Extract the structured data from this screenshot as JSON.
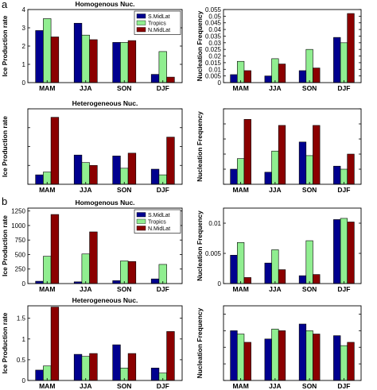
{
  "panel_labels": [
    "a",
    "b"
  ],
  "colors": {
    "S.MidLat": "#00008f",
    "Tropics": "#90ee90",
    "N.MidLat": "#8b0000"
  },
  "chart_data": [
    {
      "type": "bar",
      "panel": "a",
      "title": "Homogenous Nuc.",
      "ylabel": "Ice Production rate",
      "categories": [
        "MAM",
        "JJA",
        "SON",
        "DJF"
      ],
      "ylim": [
        0,
        4
      ],
      "yticks": [
        0,
        1,
        2,
        3,
        4
      ],
      "yticklabels": [
        "0",
        "1",
        "2",
        "3",
        "4"
      ],
      "legend": {
        "position": "top-right",
        "entries": [
          "S.MidLat",
          "Tropics",
          "N.MidLat"
        ]
      },
      "series": [
        {
          "name": "S.MidLat",
          "values": [
            2.85,
            3.25,
            2.2,
            0.45
          ]
        },
        {
          "name": "Tropics",
          "values": [
            3.5,
            2.6,
            2.2,
            1.7
          ]
        },
        {
          "name": "N.MidLat",
          "values": [
            2.5,
            2.35,
            2.3,
            0.3
          ]
        }
      ]
    },
    {
      "type": "bar",
      "panel": "a",
      "title": "",
      "ylabel": "Nucleation Frequency",
      "categories": [
        "MAM",
        "JJA",
        "SON",
        "DJF"
      ],
      "ylim": [
        0,
        0.055
      ],
      "yticks": [
        0,
        0.005,
        0.01,
        0.015,
        0.02,
        0.025,
        0.03,
        0.035,
        0.04,
        0.045,
        0.05,
        0.055
      ],
      "yticklabels": [
        "0",
        "0.005",
        "0.01",
        "0.015",
        "0.02",
        "0.025",
        "0.03",
        "0.035",
        "0.04",
        "0.045",
        "0.05",
        "0.055"
      ],
      "series": [
        {
          "name": "S.MidLat",
          "values": [
            0.006,
            0.005,
            0.009,
            0.034
          ]
        },
        {
          "name": "Tropics",
          "values": [
            0.016,
            0.018,
            0.025,
            0.03
          ]
        },
        {
          "name": "N.MidLat",
          "values": [
            0.009,
            0.014,
            0.011,
            0.052
          ]
        }
      ]
    },
    {
      "type": "bar",
      "panel": "a",
      "title": "Heterogeneous Nuc.",
      "ylabel": "Ice Production rate",
      "categories": [
        "MAM",
        "JJA",
        "SON",
        "DJF"
      ],
      "ylim": [
        0,
        0.8
      ],
      "yticks": [
        0,
        0.2,
        0.4,
        0.6,
        0.8
      ],
      "yticklabels": [
        "",
        "",
        "",
        "",
        ""
      ],
      "series": [
        {
          "name": "S.MidLat",
          "values": [
            0.1,
            0.31,
            0.3,
            0.16
          ]
        },
        {
          "name": "Tropics",
          "values": [
            0.13,
            0.23,
            0.17,
            0.1
          ]
        },
        {
          "name": "N.MidLat",
          "values": [
            0.71,
            0.2,
            0.33,
            0.5
          ]
        }
      ]
    },
    {
      "type": "bar",
      "panel": "a",
      "title": "",
      "ylabel": "Nucleation Frequency",
      "categories": [
        "MAM",
        "JJA",
        "SON",
        "DJF"
      ],
      "ylim": [
        0,
        0.5
      ],
      "yticks": [
        0,
        0.1,
        0.2,
        0.3,
        0.4,
        0.5
      ],
      "yticklabels": [
        "",
        "",
        "",
        "",
        "",
        ""
      ],
      "series": [
        {
          "name": "S.MidLat",
          "values": [
            0.1,
            0.08,
            0.28,
            0.12
          ]
        },
        {
          "name": "Tropics",
          "values": [
            0.17,
            0.22,
            0.19,
            0.1
          ]
        },
        {
          "name": "N.MidLat",
          "values": [
            0.43,
            0.39,
            0.39,
            0.2
          ]
        }
      ]
    },
    {
      "type": "bar",
      "panel": "b",
      "title": "Homogenous Nuc.",
      "ylabel": "Ice Production rate",
      "categories": [
        "MAM",
        "JJA",
        "SON",
        "DJF"
      ],
      "ylim": [
        0,
        1300
      ],
      "yticks": [
        0,
        250,
        500,
        750,
        1000,
        1250
      ],
      "yticklabels": [
        "0",
        "250",
        "500",
        "750",
        "1000",
        "1250"
      ],
      "legend": {
        "position": "top-right",
        "entries": [
          "S.MidLat",
          "Tropics",
          "N.MidLat"
        ]
      },
      "series": [
        {
          "name": "S.MidLat",
          "values": [
            40,
            30,
            50,
            80
          ]
        },
        {
          "name": "Tropics",
          "values": [
            470,
            510,
            390,
            330
          ]
        },
        {
          "name": "N.MidLat",
          "values": [
            1190,
            890,
            380,
            0
          ]
        }
      ]
    },
    {
      "type": "bar",
      "panel": "b",
      "title": "",
      "ylabel": "Nucleation Frequency",
      "categories": [
        "MAM",
        "JJA",
        "SON",
        "DJF"
      ],
      "ylim": [
        0,
        0.0125
      ],
      "yticks": [
        0,
        0.005,
        0.01
      ],
      "yticklabels": [
        "0",
        "0.005",
        "0.01"
      ],
      "series": [
        {
          "name": "S.MidLat",
          "values": [
            0.0047,
            0.0034,
            0.0013,
            0.0106
          ]
        },
        {
          "name": "Tropics",
          "values": [
            0.0068,
            0.0056,
            0.0071,
            0.0108
          ]
        },
        {
          "name": "N.MidLat",
          "values": [
            0.001,
            0.0023,
            0.0015,
            0.0102
          ]
        }
      ]
    },
    {
      "type": "bar",
      "panel": "b",
      "title": "Heterogeneous Nuc.",
      "ylabel": "Ice Production rate",
      "categories": [
        "MAM",
        "JJA",
        "SON",
        "DJF"
      ],
      "ylim": [
        0,
        1.8
      ],
      "yticks": [
        0,
        0.5,
        1,
        1.5
      ],
      "yticklabels": [
        "0",
        "0.5",
        "1",
        "1.5"
      ],
      "series": [
        {
          "name": "S.MidLat",
          "values": [
            0.25,
            0.63,
            0.86,
            0.3
          ]
        },
        {
          "name": "Tropics",
          "values": [
            0.35,
            0.58,
            0.3,
            0.18
          ]
        },
        {
          "name": "N.MidLat",
          "values": [
            1.77,
            0.65,
            0.65,
            1.18
          ]
        }
      ]
    },
    {
      "type": "bar",
      "panel": "b",
      "title": "",
      "ylabel": "Nucleation Frequency",
      "categories": [
        "MAM",
        "JJA",
        "SON",
        "DJF"
      ],
      "ylim": [
        0,
        0.45
      ],
      "yticks": [
        0,
        0.1,
        0.2,
        0.3,
        0.4
      ],
      "yticklabels": [
        "",
        "",
        "",
        "",
        ""
      ],
      "series": [
        {
          "name": "S.MidLat",
          "values": [
            0.3,
            0.25,
            0.34,
            0.27
          ]
        },
        {
          "name": "Tropics",
          "values": [
            0.28,
            0.31,
            0.3,
            0.21
          ]
        },
        {
          "name": "N.MidLat",
          "values": [
            0.23,
            0.3,
            0.28,
            0.23
          ]
        }
      ]
    }
  ]
}
